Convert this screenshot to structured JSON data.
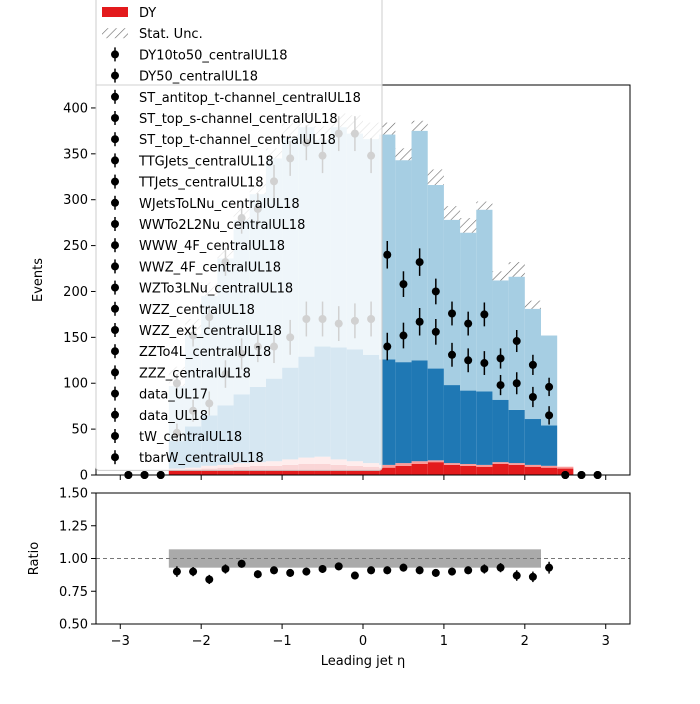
{
  "chart_data": [
    {
      "type": "bar",
      "panel": "main",
      "xlabel": "Leading jet  η",
      "ylabel": "Events",
      "xlim": [
        -3.3,
        3.3
      ],
      "ylim": [
        0,
        425
      ],
      "x_ticks": [
        -3,
        -2,
        -1,
        0,
        1,
        2,
        3
      ],
      "x_tick_labels": [
        "−3",
        "−2",
        "−1",
        "0",
        "1",
        "2",
        "3"
      ],
      "y_ticks": [
        0,
        50,
        100,
        150,
        200,
        250,
        300,
        350,
        400
      ],
      "y_tick_labels": [
        "0",
        "50",
        "100",
        "150",
        "200",
        "250",
        "300",
        "350",
        "400"
      ],
      "bin_edges": [
        -3.0,
        -2.8,
        -2.6,
        -2.4,
        -2.2,
        -2.0,
        -1.8,
        -1.6,
        -1.4,
        -1.2,
        -1.0,
        -0.8,
        -0.6,
        -0.4,
        -0.2,
        0.0,
        0.2,
        0.4,
        0.6,
        0.8,
        1.0,
        1.2,
        1.4,
        1.6,
        1.8,
        2.0,
        2.2,
        2.4,
        2.6,
        2.8,
        3.0
      ],
      "stack": [
        {
          "name": "DY",
          "color": "#e31a1c",
          "values": [
            0,
            0,
            0,
            5,
            6,
            7,
            8,
            9,
            10,
            10,
            11,
            12,
            12,
            11,
            10,
            9,
            8,
            10,
            12,
            14,
            11,
            10,
            9,
            12,
            11,
            9,
            8,
            7,
            0,
            0
          ]
        },
        {
          "name": "",
          "color": "#fb9a99",
          "values": [
            0,
            0,
            0,
            2,
            2,
            3,
            3,
            4,
            4,
            5,
            6,
            7,
            8,
            6,
            5,
            4,
            3,
            3,
            3,
            2,
            2,
            2,
            2,
            2,
            2,
            2,
            2,
            2,
            0,
            0
          ]
        },
        {
          "name": "",
          "color": "#1f78b4",
          "values": [
            0,
            0,
            0,
            30,
            45,
            55,
            65,
            75,
            82,
            90,
            100,
            110,
            120,
            122,
            122,
            118,
            115,
            110,
            110,
            100,
            85,
            80,
            80,
            68,
            58,
            50,
            44,
            0,
            0,
            0
          ]
        },
        {
          "name": "",
          "color": "#a6cee3",
          "values": [
            0,
            0,
            0,
            60,
            100,
            130,
            160,
            190,
            210,
            240,
            250,
            250,
            225,
            240,
            235,
            235,
            245,
            220,
            250,
            200,
            180,
            172,
            198,
            130,
            145,
            120,
            98,
            0,
            0,
            0
          ]
        }
      ],
      "stat_unc_top": [
        0,
        0,
        0,
        118,
        170,
        210,
        250,
        290,
        318,
        356,
        384,
        398,
        380,
        394,
        392,
        384,
        384,
        356,
        386,
        333,
        293,
        280,
        298,
        222,
        232,
        190,
        152,
        0,
        0,
        0
      ],
      "data": {
        "name": "data_UL18",
        "x": [
          -2.9,
          -2.7,
          -2.5,
          -2.3,
          -2.1,
          -1.9,
          -1.7,
          -1.5,
          -1.3,
          -1.1,
          -0.9,
          -0.7,
          -0.5,
          -0.3,
          -0.1,
          0.1,
          0.3,
          0.5,
          0.7,
          0.9,
          1.1,
          1.3,
          1.5,
          1.7,
          1.9,
          2.1,
          2.3,
          2.5,
          2.7,
          2.9
        ],
        "y": [
          0,
          0,
          0,
          100,
          152,
          172,
          232,
          280,
          290,
          320,
          345,
          362,
          348,
          372,
          372,
          348,
          240,
          208,
          232,
          200,
          176,
          165,
          175,
          127,
          146,
          120,
          96,
          0,
          0,
          0
        ],
        "y_alt": [
          0,
          0,
          0,
          46,
          70,
          78,
          110,
          132,
          140,
          140,
          150,
          170,
          170,
          165,
          168,
          170,
          140,
          152,
          167,
          156,
          131,
          125,
          122,
          98,
          100,
          85,
          65,
          0,
          0,
          0
        ],
        "yerr": [
          0,
          0,
          0,
          10,
          12,
          13,
          15,
          17,
          17,
          18,
          19,
          19,
          19,
          19,
          19,
          19,
          15,
          14,
          15,
          14,
          13,
          13,
          13,
          11,
          12,
          11,
          10,
          0,
          0,
          0
        ]
      },
      "legend_position": "upper-left",
      "legend": [
        {
          "label": "DY",
          "kind": "patch",
          "color": "#e31a1c"
        },
        {
          "label": "Stat. Unc.",
          "kind": "hatch"
        },
        {
          "label": "DY10to50_centralUL18",
          "kind": "marker"
        },
        {
          "label": "DY50_centralUL18",
          "kind": "marker"
        },
        {
          "label": "ST_antitop_t-channel_centralUL18",
          "kind": "marker"
        },
        {
          "label": "ST_top_s-channel_centralUL18",
          "kind": "marker"
        },
        {
          "label": "ST_top_t-channel_centralUL18",
          "kind": "marker"
        },
        {
          "label": "TTGJets_centralUL18",
          "kind": "marker"
        },
        {
          "label": "TTJets_centralUL18",
          "kind": "marker"
        },
        {
          "label": "WJetsToLNu_centralUL18",
          "kind": "marker"
        },
        {
          "label": "WWTo2L2Nu_centralUL18",
          "kind": "marker"
        },
        {
          "label": "WWW_4F_centralUL18",
          "kind": "marker"
        },
        {
          "label": "WWZ_4F_centralUL18",
          "kind": "marker"
        },
        {
          "label": "WZTo3LNu_centralUL18",
          "kind": "marker"
        },
        {
          "label": "WZZ_centralUL18",
          "kind": "marker"
        },
        {
          "label": "WZZ_ext_centralUL18",
          "kind": "marker"
        },
        {
          "label": "ZZTo4L_centralUL18",
          "kind": "marker"
        },
        {
          "label": "ZZZ_centralUL18",
          "kind": "marker"
        },
        {
          "label": "data_UL17",
          "kind": "marker"
        },
        {
          "label": "data_UL18",
          "kind": "marker"
        },
        {
          "label": "tW_centralUL18",
          "kind": "marker"
        },
        {
          "label": "tbarW_centralUL18",
          "kind": "marker"
        }
      ]
    },
    {
      "type": "scatter",
      "panel": "ratio",
      "ylabel": "Ratio",
      "xlabel": "Leading jet  η",
      "xlim": [
        -3.3,
        3.3
      ],
      "ylim": [
        0.5,
        1.5
      ],
      "y_ticks": [
        0.5,
        0.75,
        1.0,
        1.25,
        1.5
      ],
      "y_tick_labels": [
        "0.50",
        "0.75",
        "1.00",
        "1.25",
        "1.50"
      ],
      "reference_line": 1.0,
      "unc_band": {
        "x_range": [
          -2.4,
          2.2
        ],
        "low": 0.93,
        "high": 1.07
      },
      "x": [
        -2.3,
        -2.1,
        -1.9,
        -1.7,
        -1.5,
        -1.3,
        -1.1,
        -0.9,
        -0.7,
        -0.5,
        -0.3,
        -0.1,
        0.1,
        0.3,
        0.5,
        0.7,
        0.9,
        1.1,
        1.3,
        1.5,
        1.7,
        1.9,
        2.1,
        2.3
      ],
      "y": [
        0.9,
        0.9,
        0.84,
        0.92,
        0.96,
        0.88,
        0.91,
        0.89,
        0.9,
        0.92,
        0.94,
        0.87,
        0.91,
        0.91,
        0.93,
        0.91,
        0.89,
        0.9,
        0.91,
        0.92,
        0.93,
        0.87,
        0.86,
        0.93
      ],
      "yerr": [
        0.04,
        0.035,
        0.035,
        0.035,
        0.03,
        0.03,
        0.03,
        0.03,
        0.03,
        0.03,
        0.03,
        0.03,
        0.03,
        0.03,
        0.03,
        0.03,
        0.03,
        0.03,
        0.03,
        0.035,
        0.035,
        0.04,
        0.04,
        0.045
      ]
    }
  ]
}
